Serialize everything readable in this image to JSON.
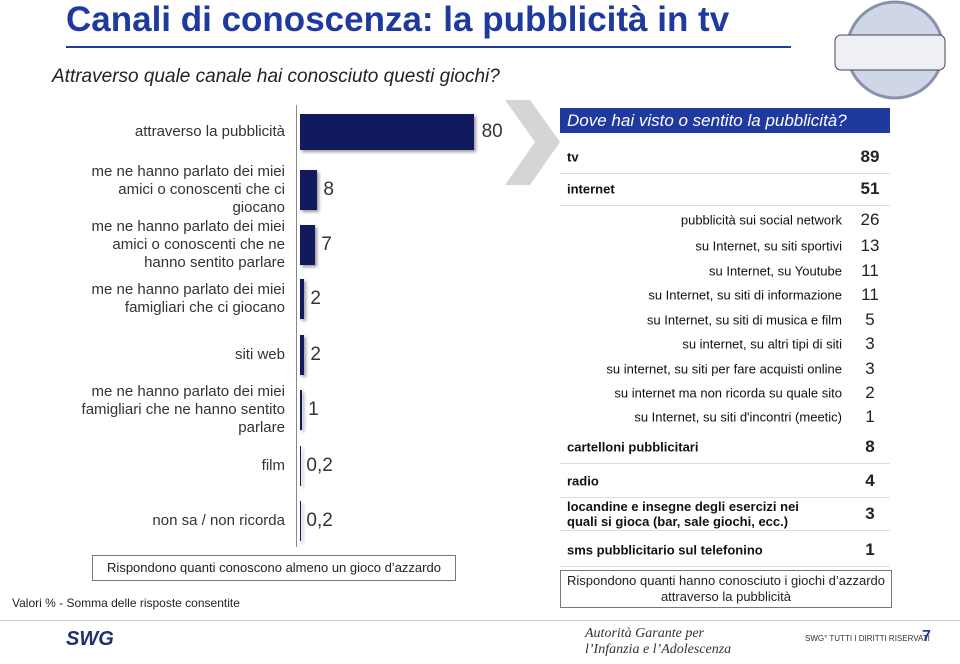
{
  "header": {
    "title": "Canali di conoscenza: la pubblicità in tv",
    "subtitle": "Attraverso quale canale hai conosciuto questi giochi?"
  },
  "chart_data": {
    "type": "bar",
    "orientation": "horizontal",
    "color": "#101a5c",
    "categories": [
      "attraverso la pubblicità",
      "me ne hanno parlato dei miei amici o conoscenti che ci giocano",
      "me ne hanno parlato dei miei amici o conoscenti che ne hanno sentito parlare",
      "me ne hanno parlato dei miei famigliari che ci giocano",
      "siti web",
      "me ne hanno parlato dei miei famigliari che ne hanno sentito parlare",
      "film",
      "non sa / non ricorda"
    ],
    "values": [
      80,
      8,
      7,
      2,
      2,
      1,
      0.2,
      0.2
    ],
    "value_labels": [
      "80",
      "8",
      "7",
      "2",
      "2",
      "1",
      "0,2",
      "0,2"
    ],
    "note": "Rispondono quanti conoscono almeno un gioco d’azzardo"
  },
  "footnote": "Valori % - Somma delle risposte consentite",
  "table": {
    "title": "Dove hai visto o sentito la pubblicità?",
    "rows": [
      {
        "label": "tv",
        "value": 89
      },
      {
        "label": "internet",
        "value": 51,
        "items": [
          {
            "label": "pubblicità sui social network",
            "value": 26
          },
          {
            "label": "su Internet, su siti sportivi",
            "value": 13
          },
          {
            "label": "su Internet, su Youtube",
            "value": 11
          },
          {
            "label": "su Internet, su siti di informazione",
            "value": 11
          },
          {
            "label": "su Internet, su siti di musica e film",
            "value": 5
          },
          {
            "label": "su internet, su altri tipi di siti",
            "value": 3
          },
          {
            "label": "su internet, su siti per fare acquisti online",
            "value": 3
          },
          {
            "label": "su internet ma non ricorda su quale sito",
            "value": 2
          },
          {
            "label": "su Internet, su siti d'incontri (meetic)",
            "value": 1
          }
        ]
      },
      {
        "label": "cartelloni pubblicitari",
        "value": 8
      },
      {
        "label": "radio",
        "value": 4
      },
      {
        "label": "locandine e insegne degli esercizi nei quali si gioca (bar, sale giochi, ecc.)",
        "value": 3
      },
      {
        "label": "sms pubblicitario sul telefonino",
        "value": 1
      }
    ],
    "note": "Rispondono quanti hanno conosciuto i giochi d’azzardo attraverso la pubblicità"
  },
  "footer": {
    "logo": "SWG",
    "partner": "Autorità Garante per l’Infanzia e l’Adolescenza",
    "rights": "SWG° TUTTI I DIRITTI RISERVATI",
    "page": "7"
  }
}
